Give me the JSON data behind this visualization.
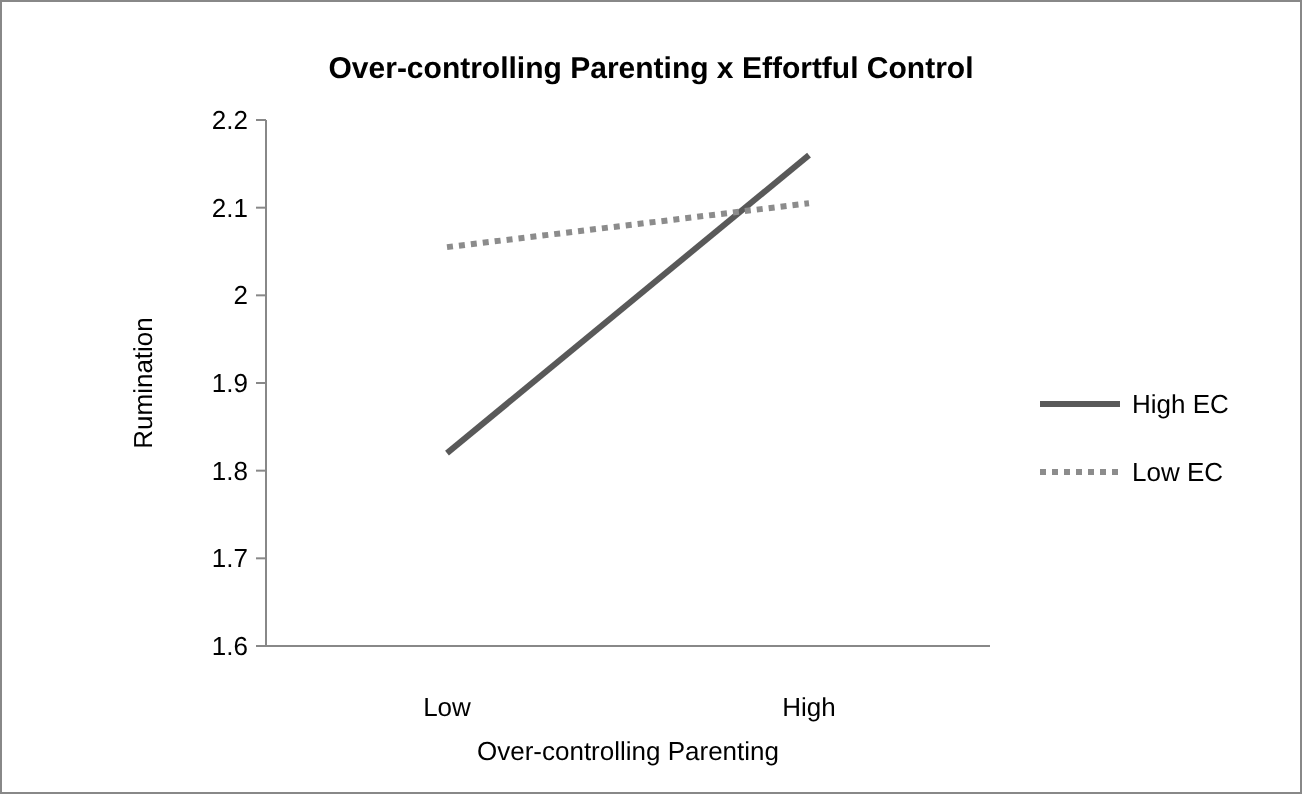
{
  "chart_data": {
    "type": "line",
    "title": "Over-controlling Parenting x Effortful Control",
    "xlabel": "Over-controlling Parenting",
    "ylabel": "Rumination",
    "categories": [
      "Low",
      "High"
    ],
    "series": [
      {
        "name": "High EC",
        "color": "#595959",
        "values": [
          1.82,
          2.16
        ],
        "line_style": "solid"
      },
      {
        "name": "Low EC",
        "color": "#8c8c8c",
        "values": [
          2.055,
          2.105
        ],
        "line_style": "dotted"
      }
    ],
    "ylim": [
      1.6,
      2.2
    ],
    "yticks": [
      1.6,
      1.7,
      1.8,
      1.9,
      2,
      2.1,
      2.2
    ],
    "grid": false,
    "legend": "right",
    "marker": "none"
  }
}
